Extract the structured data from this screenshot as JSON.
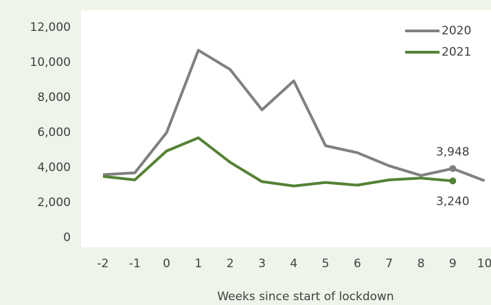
{
  "chart_data": {
    "type": "line",
    "x_label": "Weeks since start of lockdown",
    "categories": [
      "-2",
      "-1",
      "0",
      "1",
      "2",
      "3",
      "4",
      "5",
      "6",
      "7",
      "8",
      "9",
      "10"
    ],
    "series": [
      {
        "name": "2020",
        "color": "#808080",
        "values": [
          3600,
          3700,
          6000,
          10700,
          9600,
          7300,
          8950,
          5250,
          4850,
          4100,
          3550,
          3948,
          3250
        ],
        "value_labels": [
          null,
          null,
          null,
          null,
          null,
          null,
          null,
          null,
          null,
          null,
          null,
          "3,948",
          null
        ]
      },
      {
        "name": "2021",
        "color": "#548235",
        "values": [
          3500,
          3300,
          4950,
          5700,
          4300,
          3200,
          2950,
          3150,
          3000,
          3300,
          3400,
          3240,
          null
        ],
        "value_labels": [
          null,
          null,
          null,
          null,
          null,
          null,
          null,
          null,
          null,
          null,
          null,
          "3,240",
          null
        ]
      }
    ],
    "ylim": [
      0,
      12000
    ],
    "yticks": [
      0,
      {
        "value": 2000,
        "label": "2,000"
      },
      {
        "value": 4000,
        "label": "4,000"
      },
      {
        "value": 6000,
        "label": "6,000"
      },
      {
        "value": 8000,
        "label": "8,000"
      },
      {
        "value": 10000,
        "label": "10,000"
      },
      {
        "value": 12000,
        "label": "12,000"
      }
    ],
    "grid": false,
    "legend": "upper right"
  }
}
